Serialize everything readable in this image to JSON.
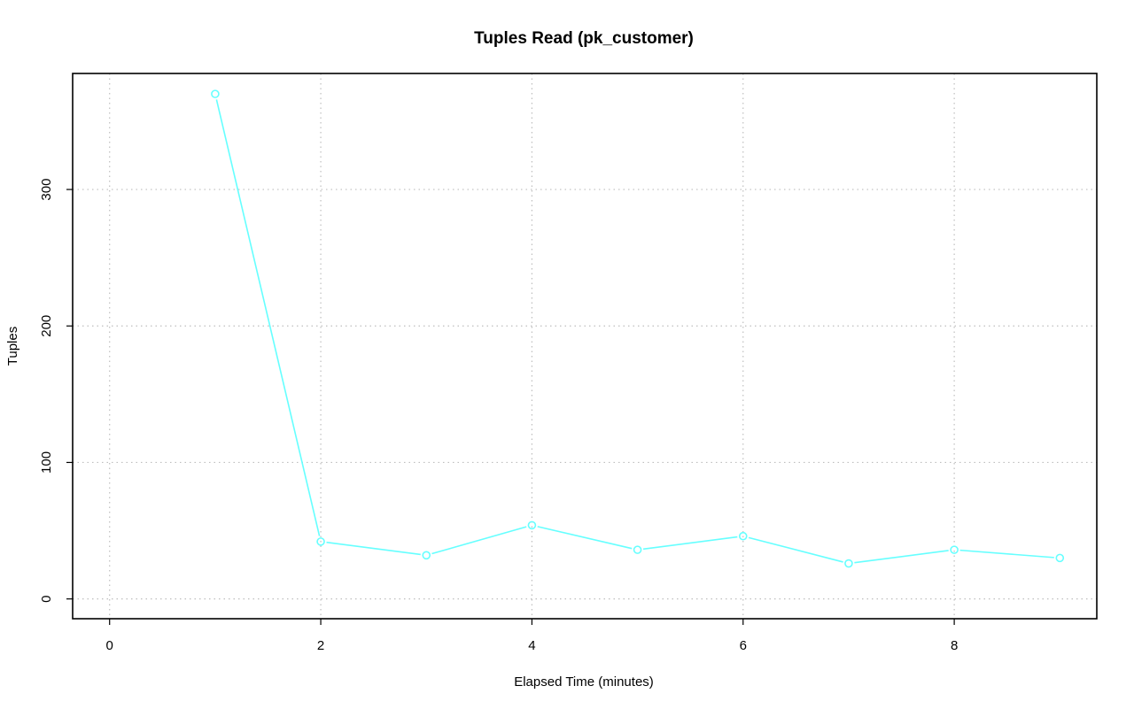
{
  "chart_data": {
    "type": "line",
    "title": "Tuples Read (pk_customer)",
    "xlabel": "Elapsed Time (minutes)",
    "ylabel": "Tuples",
    "xlim": [
      -0.35,
      9.35
    ],
    "ylim": [
      -14.5,
      385.0
    ],
    "xticks": [
      0,
      2,
      4,
      6,
      8
    ],
    "yticks": [
      0,
      100,
      200,
      300
    ],
    "grid": true,
    "legend": "none",
    "series": [
      {
        "color": "#66ffff",
        "marker": "open-circle",
        "x": [
          1,
          2,
          3,
          4,
          5,
          6,
          7,
          8,
          9
        ],
        "y": [
          370,
          42,
          32,
          54,
          36,
          46,
          26,
          36,
          30
        ]
      }
    ]
  }
}
